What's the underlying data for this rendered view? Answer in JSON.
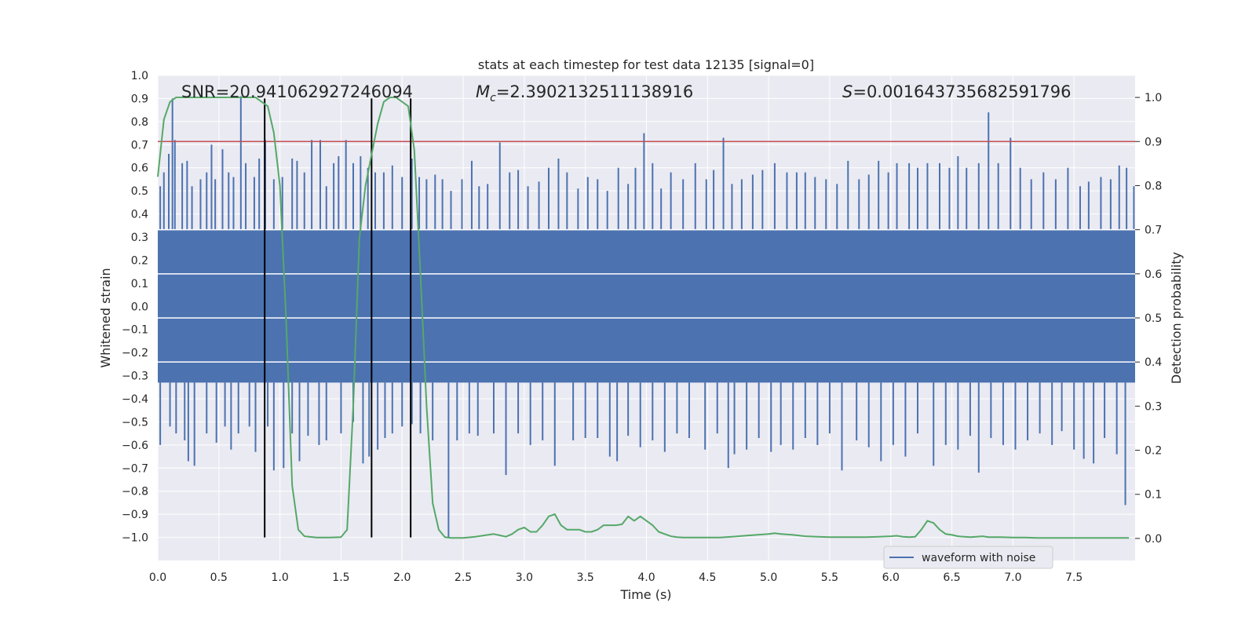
{
  "chart_data": {
    "type": "line",
    "title": "stats at each timestep for test data 12135 [signal=0]",
    "xlabel": "Time (s)",
    "ylabel": "Whitened strain",
    "y2label": "Detection probability",
    "xlim": [
      0.0,
      8.0
    ],
    "ylim": [
      -1.1,
      1.0
    ],
    "y2lim": [
      -0.05,
      1.05
    ],
    "xticks": [
      "0.0",
      "0.5",
      "1.0",
      "1.5",
      "2.0",
      "2.5",
      "3.0",
      "3.5",
      "4.0",
      "4.5",
      "5.0",
      "5.5",
      "6.0",
      "6.5",
      "7.0",
      "7.5"
    ],
    "yticks": [
      "1.0",
      "0.9",
      "0.8",
      "0.7",
      "0.6",
      "0.5",
      "0.4",
      "0.3",
      "0.2",
      "0.1",
      "0.0",
      "−0.1",
      "−0.2",
      "−0.3",
      "−0.4",
      "−0.5",
      "−0.6",
      "−0.7",
      "−0.8",
      "−0.9",
      "−1.0"
    ],
    "y2ticks": [
      "1.0",
      "0.9",
      "0.8",
      "0.7",
      "0.6",
      "0.5",
      "0.4",
      "0.3",
      "0.2",
      "0.1",
      "0.0"
    ],
    "grid": true,
    "legend_placement": "lower-right",
    "annotations": {
      "snr": "SNR=20.941062927246094",
      "mc_symbol": "M",
      "mc_sub": "c",
      "mc_value": "=2.3902132511138916",
      "s_symbol": "S",
      "s_value": "=0.001643735682591796"
    },
    "threshold": {
      "axis": "y2",
      "value": 0.9,
      "color": "#c44e52"
    },
    "vlines": {
      "x": [
        0.875,
        1.75,
        2.07
      ],
      "y_range": [
        -1.0,
        0.9
      ],
      "color": "#000000"
    },
    "series": [
      {
        "name": "waveform with noise",
        "axis": "y",
        "color": "#4c72b0",
        "description_note": null,
        "band_upper": 0.33,
        "band_lower": -0.33,
        "spikes_up": [
          [
            0.02,
            0.52
          ],
          [
            0.05,
            0.58
          ],
          [
            0.09,
            0.66
          ],
          [
            0.12,
            0.9
          ],
          [
            0.14,
            0.72
          ],
          [
            0.2,
            0.62
          ],
          [
            0.24,
            0.63
          ],
          [
            0.28,
            0.52
          ],
          [
            0.35,
            0.55
          ],
          [
            0.4,
            0.58
          ],
          [
            0.44,
            0.7
          ],
          [
            0.47,
            0.55
          ],
          [
            0.53,
            0.68
          ],
          [
            0.58,
            0.58
          ],
          [
            0.62,
            0.56
          ],
          [
            0.68,
            0.91
          ],
          [
            0.72,
            0.62
          ],
          [
            0.79,
            0.56
          ],
          [
            0.83,
            0.64
          ],
          [
            0.88,
            0.72
          ],
          [
            0.95,
            0.55
          ],
          [
            1.02,
            0.56
          ],
          [
            1.1,
            0.64
          ],
          [
            1.14,
            0.63
          ],
          [
            1.2,
            0.58
          ],
          [
            1.26,
            0.72
          ],
          [
            1.33,
            0.72
          ],
          [
            1.38,
            0.52
          ],
          [
            1.44,
            0.62
          ],
          [
            1.48,
            0.65
          ],
          [
            1.54,
            0.72
          ],
          [
            1.6,
            0.62
          ],
          [
            1.66,
            0.65
          ],
          [
            1.72,
            0.6
          ],
          [
            1.78,
            0.58
          ],
          [
            1.85,
            0.58
          ],
          [
            1.92,
            0.61
          ],
          [
            2.0,
            0.56
          ],
          [
            2.08,
            0.64
          ],
          [
            2.14,
            0.56
          ],
          [
            2.2,
            0.55
          ],
          [
            2.27,
            0.57
          ],
          [
            2.33,
            0.55
          ],
          [
            2.4,
            0.5
          ],
          [
            2.49,
            0.55
          ],
          [
            2.57,
            0.63
          ],
          [
            2.63,
            0.52
          ],
          [
            2.7,
            0.53
          ],
          [
            2.8,
            0.71
          ],
          [
            2.88,
            0.58
          ],
          [
            2.95,
            0.59
          ],
          [
            3.03,
            0.52
          ],
          [
            3.12,
            0.54
          ],
          [
            3.2,
            0.6
          ],
          [
            3.28,
            0.64
          ],
          [
            3.35,
            0.58
          ],
          [
            3.44,
            0.51
          ],
          [
            3.52,
            0.56
          ],
          [
            3.6,
            0.55
          ],
          [
            3.68,
            0.5
          ],
          [
            3.77,
            0.6
          ],
          [
            3.85,
            0.53
          ],
          [
            3.91,
            0.6
          ],
          [
            3.98,
            0.75
          ],
          [
            4.05,
            0.62
          ],
          [
            4.12,
            0.51
          ],
          [
            4.2,
            0.58
          ],
          [
            4.3,
            0.55
          ],
          [
            4.4,
            0.62
          ],
          [
            4.49,
            0.55
          ],
          [
            4.55,
            0.59
          ],
          [
            4.63,
            0.73
          ],
          [
            4.7,
            0.53
          ],
          [
            4.78,
            0.55
          ],
          [
            4.87,
            0.57
          ],
          [
            4.95,
            0.59
          ],
          [
            5.05,
            0.62
          ],
          [
            5.15,
            0.58
          ],
          [
            5.23,
            0.58
          ],
          [
            5.3,
            0.58
          ],
          [
            5.38,
            0.56
          ],
          [
            5.47,
            0.55
          ],
          [
            5.56,
            0.53
          ],
          [
            5.65,
            0.63
          ],
          [
            5.74,
            0.55
          ],
          [
            5.82,
            0.57
          ],
          [
            5.9,
            0.63
          ],
          [
            5.98,
            0.58
          ],
          [
            6.05,
            0.62
          ],
          [
            6.15,
            0.62
          ],
          [
            6.22,
            0.6
          ],
          [
            6.3,
            0.62
          ],
          [
            6.4,
            0.62
          ],
          [
            6.48,
            0.6
          ],
          [
            6.55,
            0.65
          ],
          [
            6.62,
            0.6
          ],
          [
            6.72,
            0.62
          ],
          [
            6.8,
            0.84
          ],
          [
            6.88,
            0.62
          ],
          [
            6.98,
            0.73
          ],
          [
            7.06,
            0.6
          ],
          [
            7.15,
            0.55
          ],
          [
            7.25,
            0.58
          ],
          [
            7.35,
            0.55
          ],
          [
            7.45,
            0.6
          ],
          [
            7.55,
            0.52
          ],
          [
            7.62,
            0.54
          ],
          [
            7.72,
            0.56
          ],
          [
            7.8,
            0.55
          ],
          [
            7.87,
            0.61
          ],
          [
            7.93,
            0.6
          ],
          [
            7.99,
            0.52
          ]
        ],
        "spikes_down": [
          [
            0.02,
            -0.6
          ],
          [
            0.1,
            -0.52
          ],
          [
            0.15,
            -0.55
          ],
          [
            0.22,
            -0.58
          ],
          [
            0.25,
            -0.67
          ],
          [
            0.3,
            -0.69
          ],
          [
            0.4,
            -0.55
          ],
          [
            0.48,
            -0.59
          ],
          [
            0.55,
            -0.52
          ],
          [
            0.6,
            -0.62
          ],
          [
            0.66,
            -0.55
          ],
          [
            0.75,
            -0.52
          ],
          [
            0.8,
            -0.63
          ],
          [
            0.9,
            -0.52
          ],
          [
            0.95,
            -0.71
          ],
          [
            1.03,
            -0.7
          ],
          [
            1.1,
            -0.55
          ],
          [
            1.16,
            -0.67
          ],
          [
            1.23,
            -0.56
          ],
          [
            1.32,
            -0.6
          ],
          [
            1.38,
            -0.58
          ],
          [
            1.5,
            -0.55
          ],
          [
            1.6,
            -0.5
          ],
          [
            1.68,
            -0.68
          ],
          [
            1.73,
            -0.65
          ],
          [
            1.8,
            -0.62
          ],
          [
            1.86,
            -0.57
          ],
          [
            1.92,
            -0.55
          ],
          [
            2.0,
            -0.52
          ],
          [
            2.08,
            -0.51
          ],
          [
            2.15,
            -0.55
          ],
          [
            2.25,
            -0.58
          ],
          [
            2.38,
            -1.0
          ],
          [
            2.45,
            -0.58
          ],
          [
            2.55,
            -0.55
          ],
          [
            2.62,
            -0.56
          ],
          [
            2.75,
            -0.55
          ],
          [
            2.85,
            -0.73
          ],
          [
            2.95,
            -0.55
          ],
          [
            3.05,
            -0.6
          ],
          [
            3.15,
            -0.58
          ],
          [
            3.25,
            -0.69
          ],
          [
            3.4,
            -0.58
          ],
          [
            3.5,
            -0.57
          ],
          [
            3.6,
            -0.57
          ],
          [
            3.7,
            -0.65
          ],
          [
            3.76,
            -0.67
          ],
          [
            3.85,
            -0.56
          ],
          [
            3.95,
            -0.61
          ],
          [
            4.05,
            -0.58
          ],
          [
            4.15,
            -0.63
          ],
          [
            4.25,
            -0.55
          ],
          [
            4.35,
            -0.57
          ],
          [
            4.48,
            -0.62
          ],
          [
            4.58,
            -0.55
          ],
          [
            4.67,
            -0.7
          ],
          [
            4.72,
            -0.64
          ],
          [
            4.82,
            -0.62
          ],
          [
            4.92,
            -0.57
          ],
          [
            5.02,
            -0.63
          ],
          [
            5.1,
            -0.6
          ],
          [
            5.2,
            -0.62
          ],
          [
            5.3,
            -0.57
          ],
          [
            5.4,
            -0.6
          ],
          [
            5.5,
            -0.55
          ],
          [
            5.6,
            -0.71
          ],
          [
            5.72,
            -0.58
          ],
          [
            5.82,
            -0.61
          ],
          [
            5.92,
            -0.67
          ],
          [
            6.02,
            -0.6
          ],
          [
            6.12,
            -0.65
          ],
          [
            6.22,
            -0.55
          ],
          [
            6.35,
            -0.69
          ],
          [
            6.45,
            -0.6
          ],
          [
            6.55,
            -0.62
          ],
          [
            6.65,
            -0.56
          ],
          [
            6.72,
            -0.72
          ],
          [
            6.82,
            -0.57
          ],
          [
            6.92,
            -0.6
          ],
          [
            7.02,
            -0.62
          ],
          [
            7.12,
            -0.58
          ],
          [
            7.22,
            -0.55
          ],
          [
            7.32,
            -0.6
          ],
          [
            7.4,
            -0.54
          ],
          [
            7.5,
            -0.62
          ],
          [
            7.58,
            -0.66
          ],
          [
            7.66,
            -0.68
          ],
          [
            7.75,
            -0.57
          ],
          [
            7.85,
            -0.64
          ],
          [
            7.92,
            -0.86
          ]
        ]
      },
      {
        "name": "",
        "axis": "y2",
        "color": "#55a868",
        "x": [
          0.0,
          0.05,
          0.1,
          0.15,
          0.2,
          0.3,
          0.4,
          0.5,
          0.6,
          0.7,
          0.75,
          0.8,
          0.85,
          0.9,
          0.95,
          1.0,
          1.05,
          1.1,
          1.15,
          1.2,
          1.3,
          1.4,
          1.5,
          1.55,
          1.6,
          1.65,
          1.7,
          1.75,
          1.8,
          1.85,
          1.9,
          1.95,
          2.0,
          2.05,
          2.1,
          2.15,
          2.2,
          2.25,
          2.3,
          2.35,
          2.4,
          2.5,
          2.6,
          2.7,
          2.75,
          2.8,
          2.85,
          2.9,
          2.95,
          3.0,
          3.05,
          3.1,
          3.15,
          3.2,
          3.25,
          3.3,
          3.35,
          3.4,
          3.45,
          3.5,
          3.55,
          3.6,
          3.65,
          3.7,
          3.75,
          3.8,
          3.85,
          3.9,
          3.95,
          4.0,
          4.05,
          4.1,
          4.15,
          4.2,
          4.25,
          4.3,
          4.35,
          4.4,
          4.5,
          4.6,
          4.7,
          4.8,
          4.9,
          5.0,
          5.05,
          5.1,
          5.2,
          5.3,
          5.4,
          5.5,
          5.6,
          5.7,
          5.8,
          5.9,
          6.0,
          6.05,
          6.1,
          6.15,
          6.2,
          6.25,
          6.3,
          6.35,
          6.4,
          6.45,
          6.5,
          6.55,
          6.6,
          6.65,
          6.7,
          6.75,
          6.8,
          6.9,
          7.0,
          7.1,
          7.2,
          7.4,
          7.6,
          7.8,
          7.95
        ],
        "values": [
          0.82,
          0.95,
          0.99,
          1.0,
          1.0,
          1.0,
          1.0,
          1.0,
          1.0,
          1.0,
          1.0,
          1.0,
          0.99,
          0.98,
          0.92,
          0.8,
          0.5,
          0.12,
          0.02,
          0.005,
          0.002,
          0.002,
          0.003,
          0.02,
          0.3,
          0.68,
          0.8,
          0.87,
          0.94,
          0.99,
          1.0,
          1.0,
          0.99,
          0.98,
          0.88,
          0.6,
          0.3,
          0.08,
          0.02,
          0.003,
          0.001,
          0.001,
          0.004,
          0.008,
          0.01,
          0.007,
          0.004,
          0.01,
          0.02,
          0.025,
          0.015,
          0.015,
          0.03,
          0.05,
          0.055,
          0.03,
          0.02,
          0.02,
          0.02,
          0.015,
          0.015,
          0.02,
          0.03,
          0.03,
          0.03,
          0.032,
          0.05,
          0.04,
          0.05,
          0.04,
          0.03,
          0.015,
          0.01,
          0.005,
          0.003,
          0.002,
          0.002,
          0.002,
          0.002,
          0.002,
          0.004,
          0.006,
          0.008,
          0.01,
          0.012,
          0.01,
          0.008,
          0.005,
          0.004,
          0.003,
          0.003,
          0.003,
          0.003,
          0.004,
          0.005,
          0.006,
          0.004,
          0.003,
          0.004,
          0.02,
          0.04,
          0.035,
          0.02,
          0.01,
          0.008,
          0.005,
          0.004,
          0.003,
          0.004,
          0.005,
          0.003,
          0.003,
          0.002,
          0.002,
          0.001,
          0.001,
          0.001,
          0.001,
          0.001
        ]
      }
    ]
  }
}
